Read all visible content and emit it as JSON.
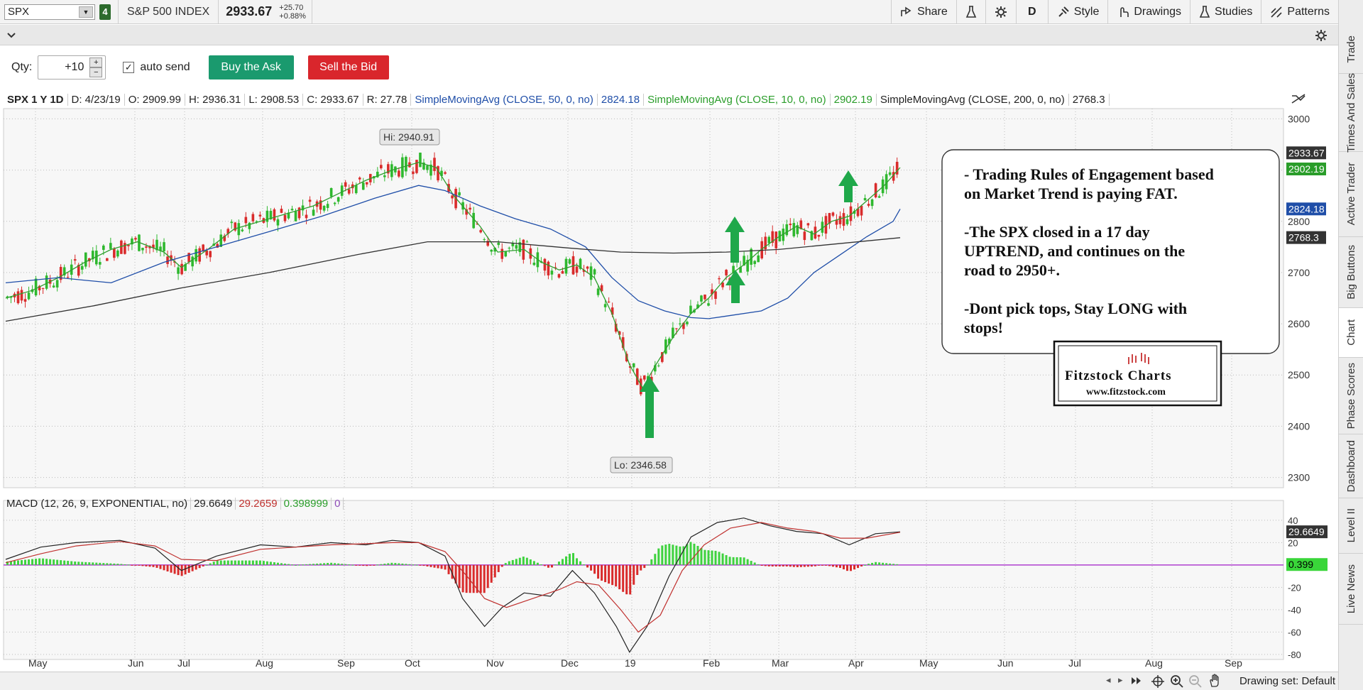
{
  "header": {
    "symbol": "SPX",
    "link_number": "4",
    "description": "S&P 500 INDEX",
    "last_price": "2933.67",
    "change": "+25.70",
    "change_pct": "+0.88%",
    "tools": [
      {
        "label": "Share",
        "icon": "share-icon"
      },
      {
        "label": "",
        "icon": "flask-icon"
      },
      {
        "label": "",
        "icon": "gear-icon"
      },
      {
        "label": "D",
        "icon": ""
      },
      {
        "label": "Style",
        "icon": "style-icon"
      },
      {
        "label": "Drawings",
        "icon": "drawings-icon"
      },
      {
        "label": "Studies",
        "icon": "studies-icon"
      },
      {
        "label": "Patterns",
        "icon": "patterns-icon"
      }
    ]
  },
  "order": {
    "qty_label": "Qty:",
    "qty_value": "+10",
    "auto_send_label": "auto send",
    "auto_send_checked": true,
    "buy_label": "Buy the Ask",
    "sell_label": "Sell the Bid"
  },
  "sidebar": {
    "tabs": [
      "Trade",
      "Times And Sales",
      "Active Trader",
      "Big Buttons",
      "Chart",
      "Phase Scores",
      "Dashboard",
      "Level II",
      "Live News"
    ],
    "active": "Chart"
  },
  "study_header": {
    "title": "SPX 1 Y 1D",
    "date": "D: 4/23/19",
    "open": "O: 2909.99",
    "high": "H: 2936.31",
    "low": "L: 2908.53",
    "close": "C: 2933.67",
    "range": "R: 27.78",
    "sma50_label": "SimpleMovingAvg (CLOSE, 50, 0, no)",
    "sma50_value": "2824.18",
    "sma10_label": "SimpleMovingAvg (CLOSE, 10, 0, no)",
    "sma10_value": "2902.19",
    "sma200_label": "SimpleMovingAvg (CLOSE, 200, 0, no)",
    "sma200_value": "2768.3"
  },
  "macd_header": {
    "label": "MACD (12, 26, 9, EXPONENTIAL, no)",
    "value": "29.6649",
    "avg": "29.2659",
    "diff": "0.398999",
    "zero": "0"
  },
  "annotation": {
    "lines": [
      "- Trading Rules of Engagement based",
      "on Market Trend is paying FAT.",
      "",
      "-The SPX closed in a 17 day",
      "UPTREND, and continues on the",
      "road to 2950+.",
      "",
      "-Dont pick tops, Stay LONG with",
      "stops!"
    ],
    "logo_title": "Fitzstock Charts",
    "logo_url": "www.fitzstock.com"
  },
  "bottom": {
    "drawing_set": "Drawing set: Default"
  },
  "chart_data": {
    "type": "candlestick",
    "price_axis": {
      "ylim": [
        2280,
        3020
      ],
      "ticks": [
        "3000",
        "2900",
        "2800",
        "2700",
        "2600",
        "2500",
        "2400",
        "2300"
      ]
    },
    "x_labels": [
      "May",
      "Jun",
      "Jul",
      "Aug",
      "Sep",
      "Oct",
      "Nov",
      "Dec",
      "19",
      "Feb",
      "Mar",
      "Apr",
      "May",
      "Jun",
      "Jul",
      "Aug",
      "Sep"
    ],
    "hi_label": "Hi: 2940.91",
    "lo_label": "Lo: 2346.58",
    "price_badges": [
      {
        "text": "2933.67",
        "color": "#333333"
      },
      {
        "text": "2902.19",
        "color": "#2a9d2a"
      },
      {
        "text": "2824.18",
        "color": "#1f4ea8"
      },
      {
        "text": "2768.3",
        "color": "#333333"
      }
    ],
    "series": [
      {
        "name": "SimpleMovingAvg (CLOSE, 10, 0, no)",
        "color": "#2e9e2e",
        "points": [
          [
            0,
            2650
          ],
          [
            30,
            2665
          ],
          [
            60,
            2690
          ],
          [
            90,
            2720
          ],
          [
            120,
            2745
          ],
          [
            150,
            2760
          ],
          [
            180,
            2740
          ],
          [
            200,
            2710
          ],
          [
            230,
            2745
          ],
          [
            260,
            2785
          ],
          [
            290,
            2800
          ],
          [
            320,
            2815
          ],
          [
            350,
            2830
          ],
          [
            380,
            2855
          ],
          [
            410,
            2880
          ],
          [
            440,
            2900
          ],
          [
            470,
            2915
          ],
          [
            490,
            2905
          ],
          [
            510,
            2850
          ],
          [
            540,
            2790
          ],
          [
            560,
            2740
          ],
          [
            590,
            2745
          ],
          [
            610,
            2720
          ],
          [
            630,
            2705
          ],
          [
            650,
            2715
          ],
          [
            670,
            2690
          ],
          [
            690,
            2620
          ],
          [
            710,
            2520
          ],
          [
            725,
            2475
          ],
          [
            740,
            2520
          ],
          [
            760,
            2575
          ],
          [
            780,
            2620
          ],
          [
            800,
            2650
          ],
          [
            820,
            2690
          ],
          [
            840,
            2715
          ],
          [
            860,
            2745
          ],
          [
            880,
            2770
          ],
          [
            900,
            2790
          ],
          [
            920,
            2775
          ],
          [
            940,
            2800
          ],
          [
            960,
            2810
          ],
          [
            980,
            2840
          ],
          [
            1000,
            2870
          ],
          [
            1018,
            2905
          ]
        ]
      },
      {
        "name": "SimpleMovingAvg (CLOSE, 50, 0, no)",
        "color": "#1f4ea8",
        "points": [
          [
            0,
            2680
          ],
          [
            60,
            2690
          ],
          [
            120,
            2680
          ],
          [
            180,
            2720
          ],
          [
            240,
            2750
          ],
          [
            300,
            2780
          ],
          [
            360,
            2810
          ],
          [
            420,
            2845
          ],
          [
            470,
            2870
          ],
          [
            500,
            2860
          ],
          [
            540,
            2830
          ],
          [
            580,
            2805
          ],
          [
            620,
            2785
          ],
          [
            660,
            2750
          ],
          [
            690,
            2690
          ],
          [
            720,
            2645
          ],
          [
            750,
            2625
          ],
          [
            780,
            2612
          ],
          [
            800,
            2610
          ],
          [
            820,
            2615
          ],
          [
            860,
            2625
          ],
          [
            890,
            2650
          ],
          [
            920,
            2700
          ],
          [
            950,
            2735
          ],
          [
            980,
            2770
          ],
          [
            1010,
            2800
          ],
          [
            1018,
            2824
          ]
        ]
      },
      {
        "name": "SimpleMovingAvg (CLOSE, 200, 0, no)",
        "color": "#333333",
        "points": [
          [
            0,
            2605
          ],
          [
            100,
            2635
          ],
          [
            200,
            2670
          ],
          [
            300,
            2700
          ],
          [
            400,
            2735
          ],
          [
            480,
            2760
          ],
          [
            560,
            2760
          ],
          [
            640,
            2748
          ],
          [
            700,
            2740
          ],
          [
            760,
            2738
          ],
          [
            820,
            2740
          ],
          [
            880,
            2745
          ],
          [
            940,
            2755
          ],
          [
            1018,
            2768
          ]
        ]
      }
    ],
    "macd": {
      "ylim": [
        -82,
        45
      ],
      "ticks": [
        "40",
        "20",
        "-20",
        "-40",
        "-60",
        "-80"
      ],
      "badges": [
        {
          "text": "29.6649",
          "color": "#333333"
        },
        {
          "text": "0.399",
          "color": "#39d639"
        }
      ],
      "macd_line": [
        [
          0,
          5
        ],
        [
          40,
          16
        ],
        [
          80,
          20
        ],
        [
          130,
          22
        ],
        [
          170,
          15
        ],
        [
          200,
          -5
        ],
        [
          240,
          8
        ],
        [
          290,
          18
        ],
        [
          330,
          16
        ],
        [
          370,
          20
        ],
        [
          410,
          18
        ],
        [
          440,
          22
        ],
        [
          470,
          20
        ],
        [
          500,
          8
        ],
        [
          520,
          -30
        ],
        [
          545,
          -55
        ],
        [
          565,
          -38
        ],
        [
          590,
          -25
        ],
        [
          620,
          -28
        ],
        [
          645,
          -5
        ],
        [
          670,
          -25
        ],
        [
          695,
          -55
        ],
        [
          710,
          -78
        ],
        [
          730,
          -55
        ],
        [
          755,
          -10
        ],
        [
          780,
          25
        ],
        [
          810,
          38
        ],
        [
          840,
          42
        ],
        [
          870,
          35
        ],
        [
          900,
          30
        ],
        [
          930,
          28
        ],
        [
          960,
          18
        ],
        [
          990,
          28
        ],
        [
          1018,
          29.66
        ]
      ],
      "signal_line": [
        [
          0,
          2
        ],
        [
          40,
          10
        ],
        [
          80,
          17
        ],
        [
          130,
          21
        ],
        [
          170,
          17
        ],
        [
          200,
          5
        ],
        [
          240,
          4
        ],
        [
          290,
          14
        ],
        [
          330,
          16
        ],
        [
          370,
          18
        ],
        [
          410,
          19
        ],
        [
          440,
          20
        ],
        [
          470,
          20
        ],
        [
          500,
          12
        ],
        [
          525,
          -10
        ],
        [
          545,
          -30
        ],
        [
          570,
          -38
        ],
        [
          600,
          -30
        ],
        [
          630,
          -22
        ],
        [
          650,
          -15
        ],
        [
          675,
          -18
        ],
        [
          700,
          -40
        ],
        [
          720,
          -60
        ],
        [
          745,
          -45
        ],
        [
          770,
          -5
        ],
        [
          795,
          18
        ],
        [
          825,
          33
        ],
        [
          860,
          38
        ],
        [
          890,
          33
        ],
        [
          920,
          30
        ],
        [
          950,
          24
        ],
        [
          980,
          24
        ],
        [
          1018,
          29.27
        ]
      ]
    },
    "arrows": 4
  }
}
